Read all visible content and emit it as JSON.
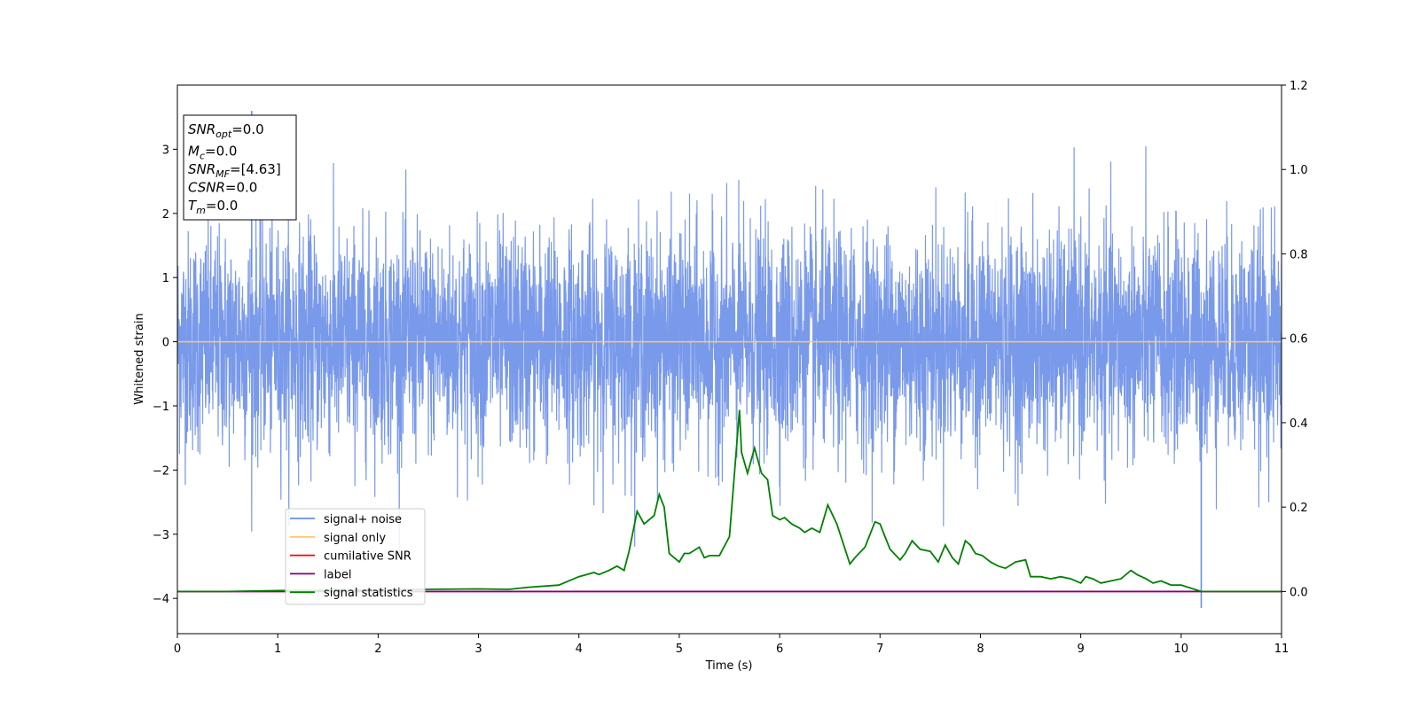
{
  "chart_data": {
    "type": "line",
    "xlabel": "Time (s)",
    "ylabel": "Whitened strain",
    "xlim": [
      0,
      11
    ],
    "ylim_left": [
      -4.55,
      4.0
    ],
    "ylim_right": [
      -0.1,
      1.2
    ],
    "x_ticks": [
      0,
      1,
      2,
      3,
      4,
      5,
      6,
      7,
      8,
      9,
      10,
      11
    ],
    "y_ticks_left": [
      -4,
      -3,
      -2,
      -1,
      0,
      1,
      2,
      3
    ],
    "y_ticks_right": [
      0.0,
      0.2,
      0.4,
      0.6,
      0.8,
      1.0,
      1.2
    ],
    "grid": false,
    "legend_placement": "lower-left",
    "legend": [
      {
        "label": "signal+ noise",
        "color": "#6a8ee8"
      },
      {
        "label": "signal only",
        "color": "#ffc966"
      },
      {
        "label": "cumilative SNR",
        "color": "#ff0000"
      },
      {
        "label": "label",
        "color": "#800080"
      },
      {
        "label": "signal statistics",
        "color": "#008000"
      }
    ],
    "info_box": [
      {
        "name": "SNR",
        "sub": "opt",
        "value": "=0.0"
      },
      {
        "name": "M",
        "sub": "c",
        "value": "=0.0"
      },
      {
        "name": "SNR",
        "sub": "MF",
        "value": "=[4.63]"
      },
      {
        "name": "CSNR",
        "sub": "",
        "value": "=0.0"
      },
      {
        "name": "T",
        "sub": "m",
        "value": "=0.0"
      }
    ],
    "series": [
      {
        "name": "signal+ noise",
        "axis": "left",
        "color": "#6a8ee8",
        "description_level": "noise approx. within [-3, 3.5], peaks up to 3.6, min -4.15 near t=10.2"
      },
      {
        "name": "signal only",
        "axis": "left",
        "color": "#ffc966",
        "x": [
          0,
          11
        ],
        "y": [
          0,
          0
        ]
      },
      {
        "name": "cumilative SNR",
        "axis": "right",
        "color": "#ff0000",
        "x": [
          0,
          11
        ],
        "y": [
          0,
          0
        ]
      },
      {
        "name": "label",
        "axis": "right",
        "color": "#800080",
        "x": [
          0,
          11
        ],
        "y": [
          0,
          0
        ]
      },
      {
        "name": "signal statistics",
        "axis": "right",
        "color": "#008000",
        "x": [
          0.0,
          0.5,
          1.0,
          1.5,
          2.0,
          2.5,
          3.0,
          3.3,
          3.5,
          3.8,
          4.0,
          4.15,
          4.2,
          4.3,
          4.38,
          4.45,
          4.5,
          4.58,
          4.65,
          4.75,
          4.8,
          4.85,
          4.9,
          5.0,
          5.05,
          5.1,
          5.2,
          5.25,
          5.3,
          5.4,
          5.5,
          5.6,
          5.62,
          5.68,
          5.75,
          5.82,
          5.88,
          5.93,
          6.0,
          6.05,
          6.12,
          6.2,
          6.25,
          6.32,
          6.4,
          6.48,
          6.57,
          6.7,
          6.75,
          6.85,
          6.95,
          7.0,
          7.05,
          7.1,
          7.2,
          7.25,
          7.32,
          7.4,
          7.5,
          7.58,
          7.65,
          7.72,
          7.78,
          7.85,
          7.9,
          7.95,
          8.02,
          8.1,
          8.18,
          8.25,
          8.35,
          8.45,
          8.5,
          8.6,
          8.7,
          8.8,
          8.9,
          9.0,
          9.05,
          9.12,
          9.2,
          9.3,
          9.4,
          9.5,
          9.56,
          9.65,
          9.72,
          9.8,
          9.9,
          10.0,
          10.2,
          11.0
        ],
        "y": [
          0.0,
          0.0,
          0.002,
          0.003,
          0.004,
          0.005,
          0.006,
          0.005,
          0.01,
          0.015,
          0.035,
          0.045,
          0.04,
          0.05,
          0.06,
          0.05,
          0.095,
          0.19,
          0.16,
          0.18,
          0.23,
          0.2,
          0.09,
          0.07,
          0.09,
          0.09,
          0.105,
          0.08,
          0.085,
          0.085,
          0.13,
          0.43,
          0.33,
          0.28,
          0.34,
          0.28,
          0.265,
          0.18,
          0.17,
          0.175,
          0.16,
          0.15,
          0.14,
          0.15,
          0.14,
          0.205,
          0.16,
          0.065,
          0.08,
          0.105,
          0.165,
          0.16,
          0.13,
          0.1,
          0.075,
          0.09,
          0.12,
          0.1,
          0.095,
          0.07,
          0.11,
          0.08,
          0.065,
          0.12,
          0.11,
          0.09,
          0.085,
          0.07,
          0.06,
          0.055,
          0.07,
          0.075,
          0.035,
          0.035,
          0.03,
          0.035,
          0.03,
          0.02,
          0.035,
          0.03,
          0.02,
          0.025,
          0.03,
          0.05,
          0.04,
          0.03,
          0.02,
          0.025,
          0.015,
          0.015,
          0.0,
          0.0
        ]
      }
    ]
  }
}
